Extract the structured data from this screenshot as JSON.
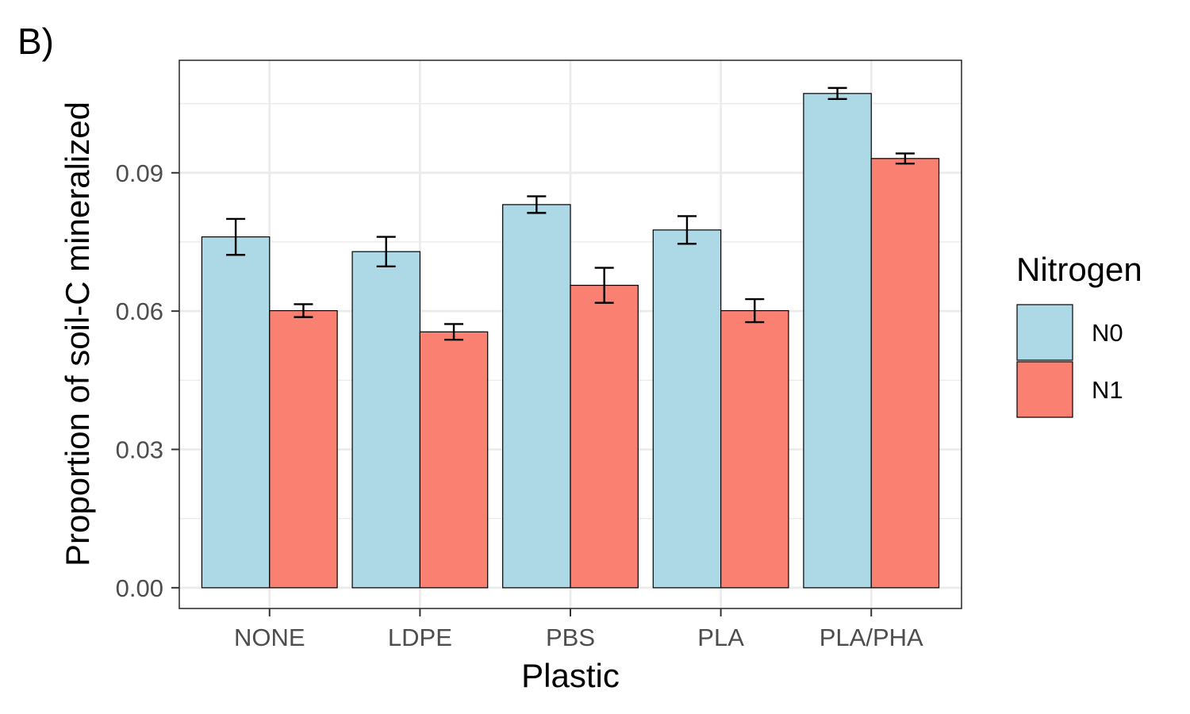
{
  "chart_data": {
    "type": "bar",
    "panel_label": "B)",
    "xlabel": "Plastic",
    "ylabel": "Proportion of soil-C mineralized",
    "categories": [
      "NONE",
      "LDPE",
      "PBS",
      "PLA",
      "PLA/PHA"
    ],
    "series": [
      {
        "name": "N0",
        "color": "#add8e6",
        "values": [
          0.0761,
          0.0729,
          0.0831,
          0.0776,
          0.1072
        ],
        "error": [
          0.0039,
          0.0032,
          0.0018,
          0.003,
          0.0012
        ]
      },
      {
        "name": "N1",
        "color": "#fa8072",
        "values": [
          0.0601,
          0.0555,
          0.0656,
          0.0601,
          0.0931
        ],
        "error": [
          0.0014,
          0.0017,
          0.0038,
          0.0025,
          0.0011
        ]
      }
    ],
    "ylim": [
      -0.0045,
      0.1144
    ],
    "yticks": [
      "0.00",
      "0.03",
      "0.06",
      "0.09"
    ],
    "ytick_values": [
      0,
      0.03,
      0.06,
      0.09
    ],
    "grid": true,
    "legend": {
      "title": "Nitrogen",
      "position": "right"
    }
  }
}
